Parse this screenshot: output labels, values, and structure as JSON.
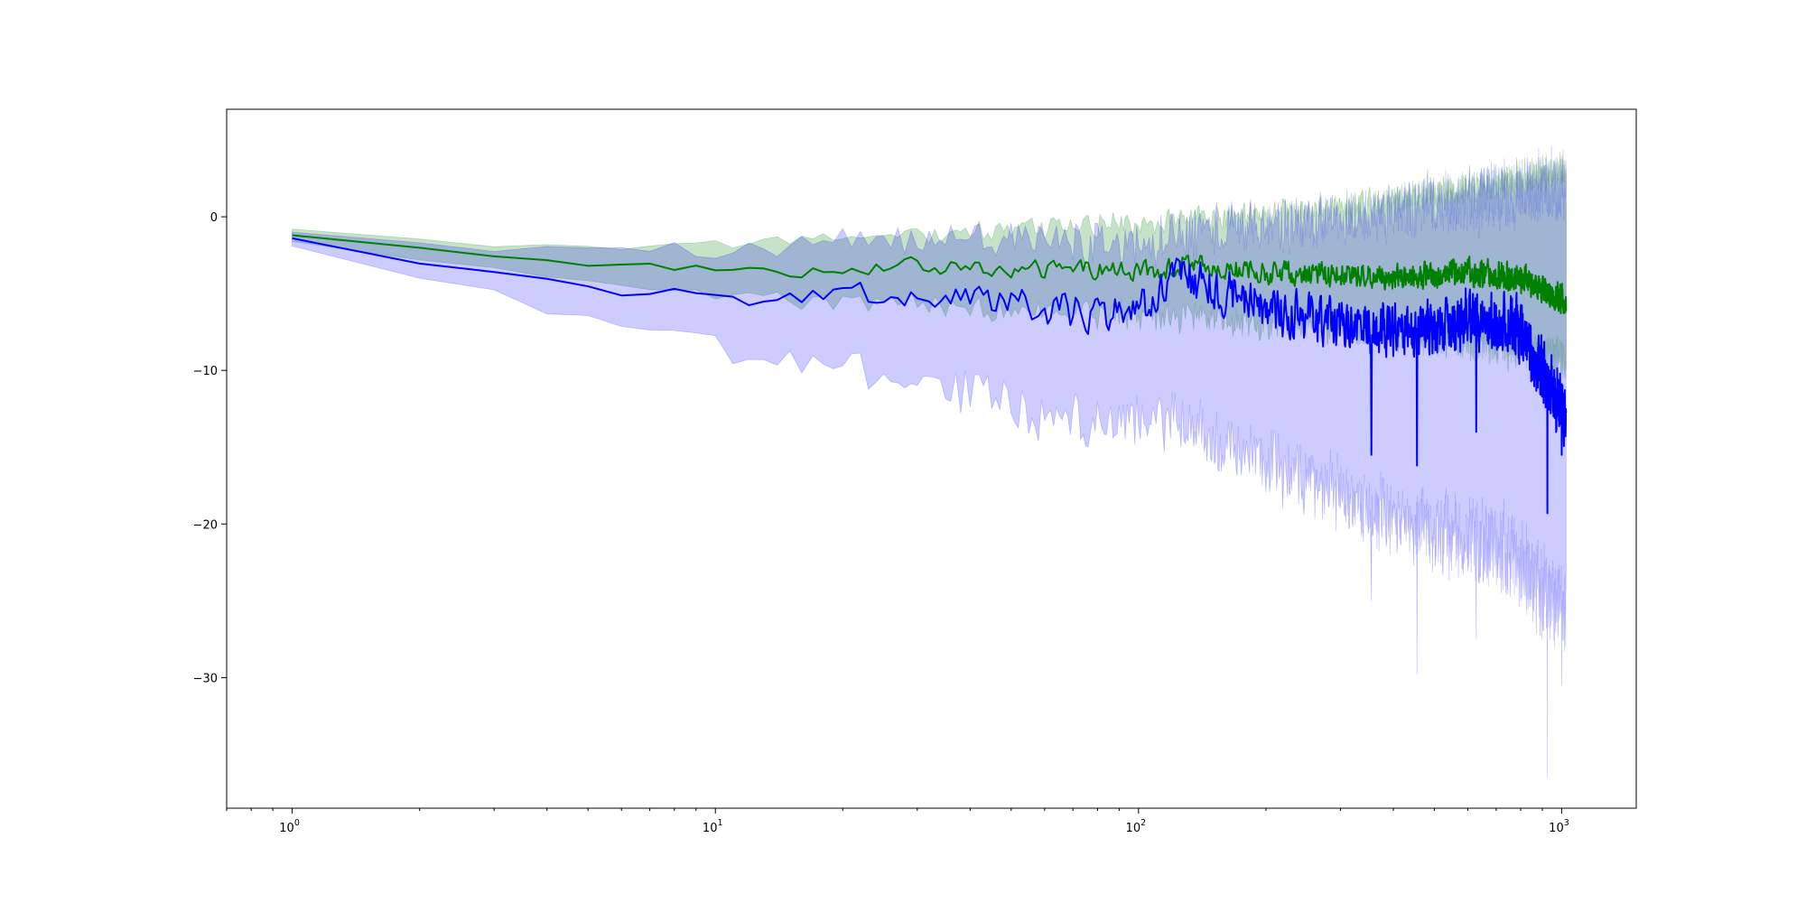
{
  "chart_data": {
    "type": "line",
    "title": "",
    "xlabel": "",
    "ylabel": "",
    "xscale": "log",
    "xlim": [
      0.7,
      1500
    ],
    "ylim": [
      -38.5,
      7
    ],
    "grid": false,
    "legend": "none",
    "x_ticks": [
      {
        "value": 1,
        "base": "10",
        "exp": "0"
      },
      {
        "value": 10,
        "base": "10",
        "exp": "1"
      },
      {
        "value": 100,
        "base": "10",
        "exp": "2"
      },
      {
        "value": 1000,
        "base": "10",
        "exp": "3"
      }
    ],
    "y_ticks": [
      {
        "value": 0,
        "label": "0"
      },
      {
        "value": -10,
        "label": "−10"
      },
      {
        "value": -20,
        "label": "−20"
      },
      {
        "value": -30,
        "label": "−30"
      }
    ],
    "x_range": [
      1,
      1024
    ],
    "series": [
      {
        "color": "#008000",
        "band_color": "#008000",
        "band_opacity": 0.22,
        "mean_profile": [
          [
            1,
            -1.2
          ],
          [
            2,
            -2.0
          ],
          [
            3,
            -2.5
          ],
          [
            5,
            -3.0
          ],
          [
            8,
            -3.3
          ],
          [
            12,
            -3.4
          ],
          [
            15,
            -3.6
          ],
          [
            20,
            -3.3
          ],
          [
            30,
            -3.2
          ],
          [
            50,
            -3.5
          ],
          [
            80,
            -3.4
          ],
          [
            100,
            -3.6
          ],
          [
            130,
            -3.2
          ],
          [
            200,
            -3.6
          ],
          [
            300,
            -3.8
          ],
          [
            450,
            -3.9
          ],
          [
            600,
            -3.6
          ],
          [
            800,
            -4.0
          ],
          [
            1024,
            -5.5
          ]
        ],
        "band_lower_profile": [
          [
            1,
            -1.6
          ],
          [
            2,
            -2.6
          ],
          [
            3,
            -3.2
          ],
          [
            5,
            -3.8
          ],
          [
            10,
            -4.6
          ],
          [
            20,
            -4.9
          ],
          [
            40,
            -5.2
          ],
          [
            70,
            -5.5
          ],
          [
            100,
            -5.6
          ],
          [
            150,
            -5.7
          ],
          [
            250,
            -6.0
          ],
          [
            400,
            -6.4
          ],
          [
            700,
            -7.0
          ],
          [
            1024,
            -8.0
          ]
        ],
        "band_upper_profile": [
          [
            1,
            -0.8
          ],
          [
            2,
            -1.5
          ],
          [
            3,
            -2.0
          ],
          [
            5,
            -2.2
          ],
          [
            10,
            -2.1
          ],
          [
            20,
            -1.8
          ],
          [
            40,
            -1.5
          ],
          [
            70,
            -1.2
          ],
          [
            100,
            -1.1
          ],
          [
            150,
            -0.8
          ],
          [
            250,
            -0.4
          ],
          [
            400,
            0.3
          ],
          [
            700,
            1.2
          ],
          [
            1024,
            2.0
          ]
        ],
        "mean_noise": [
          0.0,
          0.25,
          0.55,
          0.8,
          1.0,
          1.3
        ],
        "band_noise": [
          0.0,
          0.5,
          1.0,
          1.5,
          2.0,
          2.6
        ]
      },
      {
        "color": "#0000ff",
        "band_color": "#0000ff",
        "band_opacity": 0.2,
        "mean_profile": [
          [
            1,
            -1.4
          ],
          [
            2,
            -3.0
          ],
          [
            3,
            -3.5
          ],
          [
            5,
            -4.5
          ],
          [
            8,
            -5.1
          ],
          [
            10,
            -5.3
          ],
          [
            15,
            -5.4
          ],
          [
            20,
            -5.0
          ],
          [
            30,
            -5.2
          ],
          [
            50,
            -5.8
          ],
          [
            70,
            -6.2
          ],
          [
            100,
            -6.2
          ],
          [
            130,
            -3.9
          ],
          [
            200,
            -6.0
          ],
          [
            300,
            -7.0
          ],
          [
            450,
            -7.5
          ],
          [
            600,
            -6.5
          ],
          [
            800,
            -7.5
          ],
          [
            1024,
            -13.0
          ]
        ],
        "band_lower_profile": [
          [
            1,
            -1.9
          ],
          [
            2,
            -3.5
          ],
          [
            3,
            -4.5
          ],
          [
            5,
            -6.0
          ],
          [
            10,
            -7.8
          ],
          [
            15,
            -8.2
          ],
          [
            20,
            -8.8
          ],
          [
            30,
            -9.5
          ],
          [
            50,
            -11.0
          ],
          [
            70,
            -12.0
          ],
          [
            100,
            -11.5
          ],
          [
            150,
            -12.5
          ],
          [
            250,
            -15.0
          ],
          [
            400,
            -17.5
          ],
          [
            700,
            -19.0
          ],
          [
            1024,
            -23.0
          ]
        ],
        "band_upper_profile": [
          [
            1,
            -1.0
          ],
          [
            2,
            -2.0
          ],
          [
            3,
            -2.4
          ],
          [
            5,
            -2.8
          ],
          [
            10,
            -2.8
          ],
          [
            20,
            -2.5
          ],
          [
            30,
            -2.2
          ],
          [
            50,
            -2.5
          ],
          [
            70,
            -3.0
          ],
          [
            100,
            -3.4
          ],
          [
            150,
            -2.2
          ],
          [
            250,
            -2.0
          ],
          [
            400,
            -1.5
          ],
          [
            700,
            -0.5
          ],
          [
            1024,
            0.0
          ]
        ],
        "mean_noise": [
          0.0,
          0.5,
          1.0,
          1.6,
          2.2,
          2.8
        ],
        "band_noise": [
          0.0,
          1.0,
          2.0,
          3.0,
          4.0,
          5.0
        ],
        "spikes": [
          {
            "x": 355,
            "mean": -15.5,
            "lower": -25.0
          },
          {
            "x": 455,
            "mean": -16.2,
            "lower": -29.8
          },
          {
            "x": 628,
            "mean": -14.0,
            "lower": -27.5
          },
          {
            "x": 925,
            "mean": -19.3,
            "lower": -36.5
          },
          {
            "x": 1000,
            "mean": -15.5,
            "lower": -30.5
          }
        ]
      }
    ]
  }
}
